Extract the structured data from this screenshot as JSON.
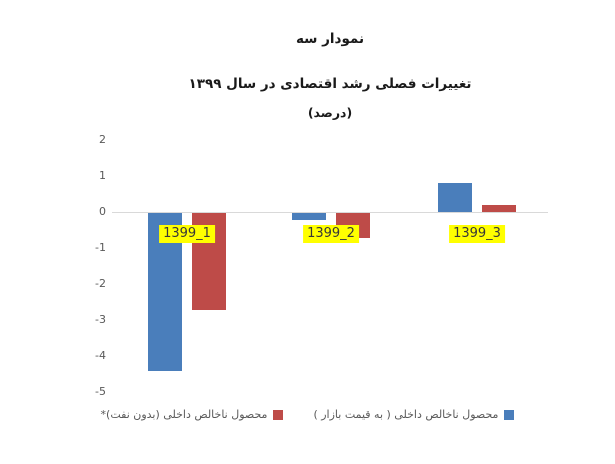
{
  "chart_data": {
    "type": "bar",
    "title": "نمودار سه",
    "subtitle": "تغییرات فصلی رشد اقتصادی در سال ۱۳۹۹",
    "unit_label": "(درصد)",
    "categories": [
      "1399_1",
      "1399_2",
      "1399_3"
    ],
    "series": [
      {
        "name": "محصول ناخالص داخلی ( به قیمت بازار )",
        "color": "#4a7ebb",
        "values": [
          -4.4,
          -0.2,
          0.8
        ]
      },
      {
        "name": "محصول ناخالص داخلی (بدون نفت)*",
        "color": "#be4b48",
        "values": [
          -2.7,
          -0.7,
          0.2
        ]
      }
    ],
    "ylim": [
      -5,
      2
    ],
    "yticks": [
      2,
      1,
      0,
      -1,
      -2,
      -3,
      -4,
      -5
    ],
    "grid": "zero-line-only",
    "legend_position": "bottom",
    "legend_visual_order": [
      1,
      0
    ],
    "category_label_style": {
      "background": "#ffff00",
      "position": "below-zero-line"
    },
    "zero_line_color": "#d9d9d9",
    "tick_text_color": "#595959"
  }
}
